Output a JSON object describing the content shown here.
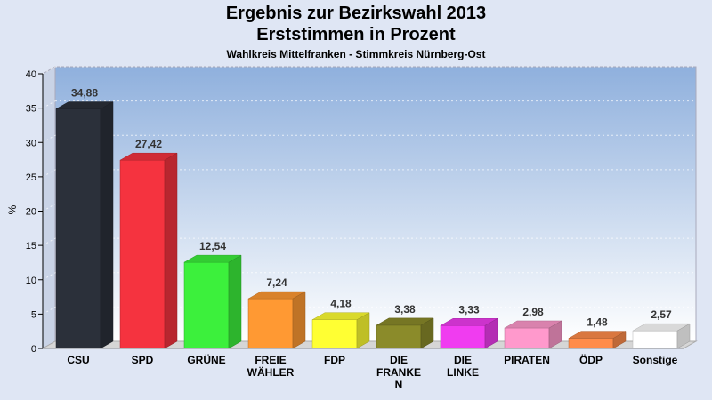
{
  "chart_data": {
    "type": "bar",
    "title": "Ergebnis zur Bezirkswahl 2013",
    "subtitle": "Erststimmen in Prozent",
    "subsubtitle": "Wahlkreis Mittelfranken - Stimmkreis Nürnberg-Ost",
    "ylabel": "%",
    "xlabel": "",
    "ylim": [
      0,
      40
    ],
    "yticks": [
      0,
      5,
      10,
      15,
      20,
      25,
      30,
      35,
      40
    ],
    "grid": true,
    "categories": [
      [
        "CSU"
      ],
      [
        "SPD"
      ],
      [
        "GRÜNE"
      ],
      [
        "FREIE",
        "WÄHLER"
      ],
      [
        "FDP"
      ],
      [
        "DIE",
        "FRANKE",
        "N"
      ],
      [
        "DIE",
        "LINKE"
      ],
      [
        "PIRATEN"
      ],
      [
        "ÖDP"
      ],
      [
        "Sonstige"
      ]
    ],
    "values": [
      34.88,
      27.42,
      12.54,
      7.24,
      4.18,
      3.38,
      3.33,
      2.98,
      1.48,
      2.57
    ],
    "value_labels": [
      "34,88",
      "27,42",
      "12,54",
      "7,24",
      "4,18",
      "3,38",
      "3,33",
      "2,98",
      "1,48",
      "2,57"
    ],
    "colors": [
      "#2b303a",
      "#f5333f",
      "#3cf03c",
      "#ff9933",
      "#ffff33",
      "#8b8b2a",
      "#f03cf0",
      "#ff99cc",
      "#ff8c4a",
      "#ffffff"
    ]
  }
}
